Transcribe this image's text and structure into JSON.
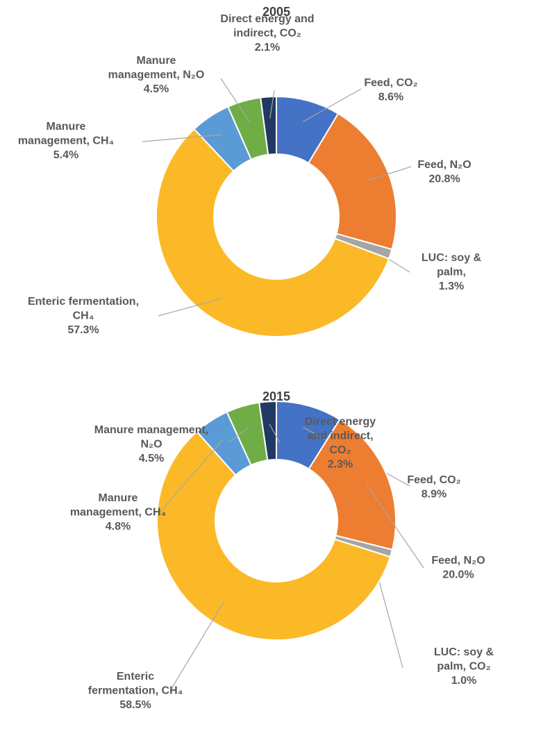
{
  "chart_data": [
    {
      "type": "donut",
      "title": "2005",
      "categories": [
        "Feed, CO₂",
        "Feed, N₂O",
        "LUC: soy & palm, CO₂",
        "Enteric fermentation, CH₄",
        "Manure management, CH₄",
        "Manure management, N₂O",
        "Direct energy and indirect, CO₂"
      ],
      "values": [
        8.6,
        20.8,
        1.3,
        57.3,
        5.4,
        4.5,
        2.1
      ],
      "value_labels": [
        "8.6%",
        "20.8%",
        "1.3%",
        "57.3%",
        "5.4%",
        "4.5%",
        "2.1%"
      ],
      "colors": [
        "#4472c4",
        "#ed7d31",
        "#a5a5a5",
        "#fbb927",
        "#5b9bd5",
        "#70ad47",
        "#203864"
      ]
    },
    {
      "type": "donut",
      "title": "2015",
      "categories": [
        "Feed, CO₂",
        "Feed, N₂O",
        "LUC: soy & palm, CO₂",
        "Enteric fermentation, CH₄",
        "Manure management, CH₄",
        "Manure management, N₂O",
        "Direct energy and indirect, CO₂"
      ],
      "values": [
        8.9,
        20.0,
        1.0,
        58.5,
        4.8,
        4.5,
        2.3
      ],
      "value_labels": [
        "8.9%",
        "20.0%",
        "1.0%",
        "58.5%",
        "4.8%",
        "4.5%",
        "2.3%"
      ],
      "colors": [
        "#4472c4",
        "#ed7d31",
        "#a5a5a5",
        "#fbb927",
        "#5b9bd5",
        "#70ad47",
        "#203864"
      ]
    }
  ]
}
